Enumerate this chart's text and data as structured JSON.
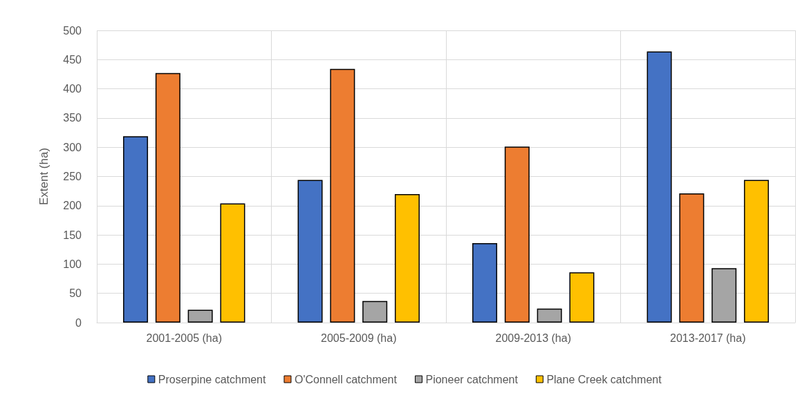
{
  "chart_data": {
    "type": "bar",
    "ylabel": "Extent (ha)",
    "categories": [
      "2001-2005 (ha)",
      "2005-2009 (ha)",
      "2009-2013 (ha)",
      "2013-2017 (ha)"
    ],
    "series": [
      {
        "name": "Proserpine catchment",
        "color": "#4472c4",
        "values": [
          319,
          244,
          136,
          464
        ]
      },
      {
        "name": "O'Connell catchment",
        "color": "#ed7d31",
        "values": [
          427,
          434,
          301,
          221
        ]
      },
      {
        "name": "Pioneer catchment",
        "color": "#a5a5a5",
        "values": [
          22,
          37,
          24,
          93
        ]
      },
      {
        "name": "Plane Creek catchment",
        "color": "#ffc000",
        "values": [
          204,
          220,
          86,
          244
        ]
      }
    ],
    "ylim": [
      0,
      500
    ],
    "yticks": [
      0,
      50,
      100,
      150,
      200,
      250,
      300,
      350,
      400,
      450,
      500
    ],
    "grid": true,
    "legend": "bottom"
  }
}
